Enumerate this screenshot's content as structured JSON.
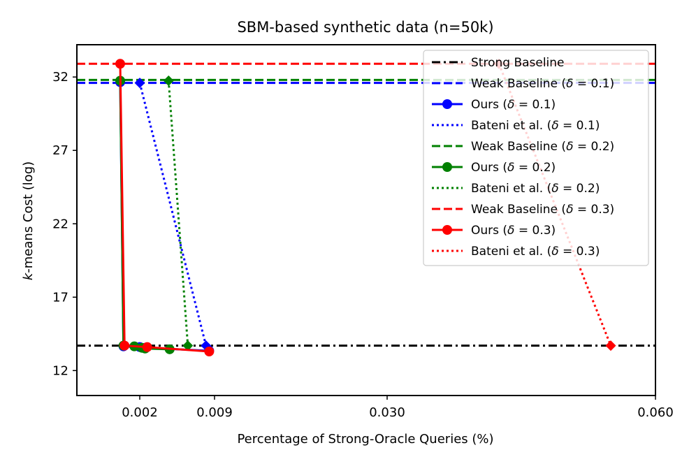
{
  "chart_data": {
    "type": "line",
    "title": "SBM-based synthetic data (n=50k)",
    "xlabel": "Percentage of Strong-Oracle Queries (%)",
    "ylabel_italic": "k",
    "ylabel_rest": "-means Cost (log)",
    "xlim": [
      -0.002,
      0.06
    ],
    "ylim": [
      10.3,
      34.2
    ],
    "x_ticks": [
      0.002,
      0.009,
      0.03,
      0.06
    ],
    "x_tick_labels": [
      "0.002",
      "0.009",
      "0.030",
      "0.060"
    ],
    "y_ticks": [
      12,
      17,
      22,
      27,
      32
    ],
    "y_tick_labels": [
      "12",
      "17",
      "22",
      "27",
      "32"
    ],
    "grid": false,
    "legend_position": "top-right",
    "hlines": [
      {
        "name": "Strong Baseline",
        "y": 13.7,
        "color": "#000000",
        "style": "dashdot",
        "legend_text": "Strong Baseline",
        "delta": ""
      },
      {
        "name": "Weak Baseline (δ=0.1)",
        "y": 31.6,
        "color": "#0000ff",
        "style": "dashed",
        "legend_text": "Weak Baseline (",
        "delta": "0.1"
      },
      {
        "name": "Weak Baseline (δ=0.2)",
        "y": 31.8,
        "color": "#008000",
        "style": "dashed",
        "legend_text": "Weak Baseline (",
        "delta": "0.2"
      },
      {
        "name": "Weak Baseline (δ=0.3)",
        "y": 32.9,
        "color": "#ff0000",
        "style": "dashed",
        "legend_text": "Weak Baseline (",
        "delta": "0.3"
      }
    ],
    "series": [
      {
        "name": "Ours (δ=0.1)",
        "legend_text": "Ours (",
        "delta": "0.1",
        "color": "#0000ff",
        "style": "solid",
        "marker": "circle",
        "points": [
          [
            0.0002,
            31.65
          ],
          [
            0.0005,
            13.65
          ],
          [
            0.002,
            13.6
          ],
          [
            0.0025,
            13.55
          ],
          [
            0.0085,
            13.35
          ]
        ]
      },
      {
        "name": "Bateni et al. (δ=0.1)",
        "legend_text": "Bateni et al. (",
        "delta": "0.1",
        "color": "#0000ff",
        "style": "dotted",
        "marker": "diamond",
        "points": [
          [
            0.002,
            31.6
          ],
          [
            0.0082,
            13.7
          ]
        ]
      },
      {
        "name": "Ours (δ=0.2)",
        "legend_text": "Ours (",
        "delta": "0.2",
        "color": "#008000",
        "style": "solid",
        "marker": "circle",
        "points": [
          [
            0.0002,
            31.75
          ],
          [
            0.0005,
            13.7
          ],
          [
            0.0015,
            13.65
          ],
          [
            0.0022,
            13.55
          ],
          [
            0.0025,
            13.5
          ],
          [
            0.0048,
            13.45
          ]
        ]
      },
      {
        "name": "Bateni et al. (δ=0.2)",
        "legend_text": "Bateni et al. (",
        "delta": "0.2",
        "color": "#008000",
        "style": "dotted",
        "marker": "diamond",
        "points": [
          [
            0.0047,
            31.75
          ],
          [
            0.0065,
            13.7
          ]
        ]
      },
      {
        "name": "Ours (δ=0.3)",
        "legend_text": "Ours (",
        "delta": "0.3",
        "color": "#ff0000",
        "style": "solid",
        "marker": "circle",
        "points": [
          [
            0.0002,
            32.9
          ],
          [
            0.0006,
            13.7
          ],
          [
            0.0027,
            13.6
          ],
          [
            0.0085,
            13.3
          ]
        ]
      },
      {
        "name": "Bateni et al. (δ=0.3)",
        "legend_text": "Bateni et al. (",
        "delta": "0.3",
        "color": "#ff0000",
        "style": "dotted",
        "marker": "diamond",
        "points": [
          [
            0.0425,
            32.9
          ],
          [
            0.055,
            13.7
          ]
        ]
      }
    ],
    "legend_order": [
      "Strong Baseline",
      "Weak Baseline (δ=0.1)",
      "Ours (δ=0.1)",
      "Bateni et al. (δ=0.1)",
      "Weak Baseline (δ=0.2)",
      "Ours (δ=0.2)",
      "Bateni et al. (δ=0.2)",
      "Weak Baseline (δ=0.3)",
      "Ours (δ=0.3)",
      "Bateni et al. (δ=0.3)"
    ]
  }
}
